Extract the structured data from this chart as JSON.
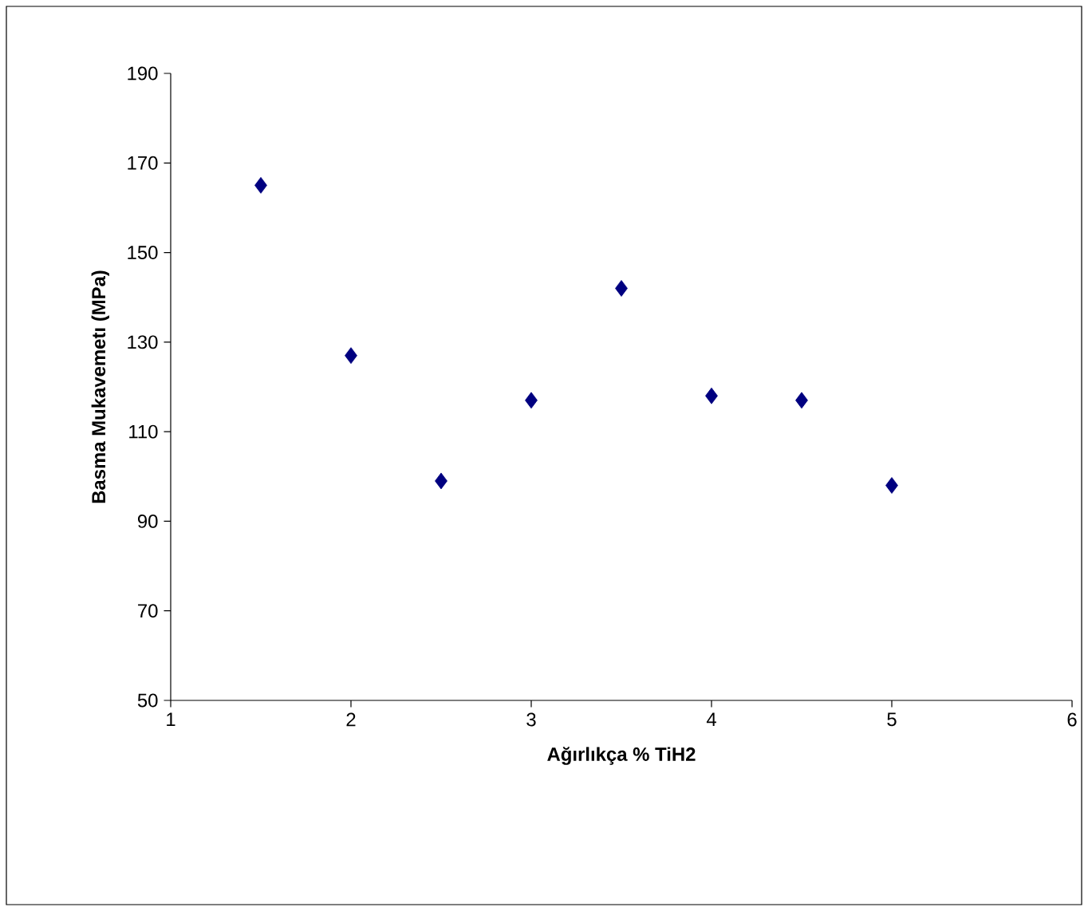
{
  "chart_data": {
    "type": "scatter",
    "xlabel": "Ağırlıkça % TiH2",
    "ylabel": "Basma Mukavemetı (MPa)",
    "x": [
      1.5,
      2,
      2.5,
      3,
      3.5,
      4,
      4.5,
      5
    ],
    "series": [
      {
        "color": "#000080",
        "values": [
          165,
          127,
          99,
          117,
          142,
          118,
          117,
          98
        ]
      }
    ],
    "marker": "diamond",
    "xlim": [
      1,
      6
    ],
    "ylim": [
      50,
      190
    ],
    "xticks": [
      1,
      2,
      3,
      4,
      5,
      6
    ],
    "yticks": [
      50,
      70,
      90,
      110,
      130,
      150,
      170,
      190
    ]
  }
}
